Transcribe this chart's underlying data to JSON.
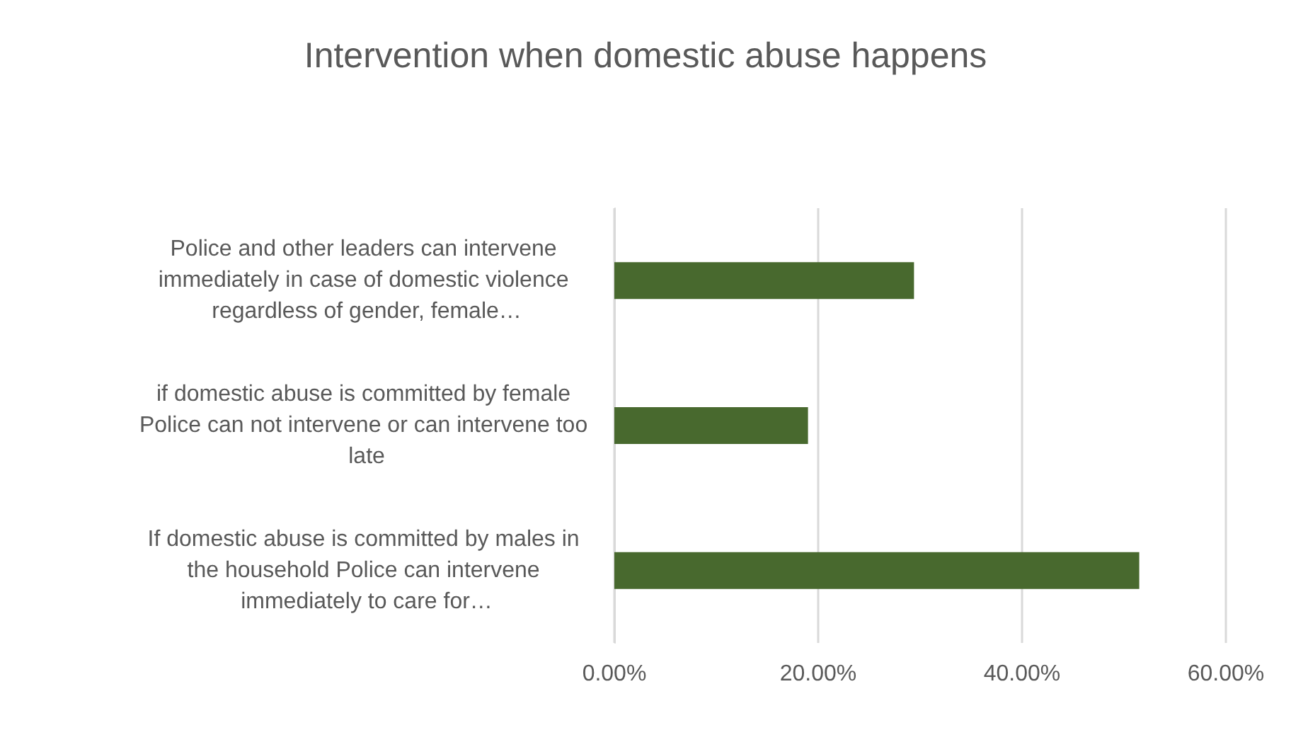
{
  "chart_data": {
    "type": "bar",
    "orientation": "horizontal",
    "title": "Intervention when domestic abuse happens",
    "categories": [
      "Police and other leaders can intervene immediately in case of domestic violence regardless of gender, female…",
      "if domestic abuse is committed by female Police can not intervene or can intervene too late",
      "If domestic abuse is committed by males in the household Police can intervene immediately to care for…"
    ],
    "values": [
      29.4,
      19.0,
      51.5
    ],
    "color": "#48692e",
    "xlim": [
      0,
      60
    ],
    "xticks": [
      {
        "value": 0,
        "label": "0.00%"
      },
      {
        "value": 20,
        "label": "20.00%"
      },
      {
        "value": 40,
        "label": "40.00%"
      },
      {
        "value": 60,
        "label": "60.00%"
      }
    ],
    "grid": "x"
  }
}
